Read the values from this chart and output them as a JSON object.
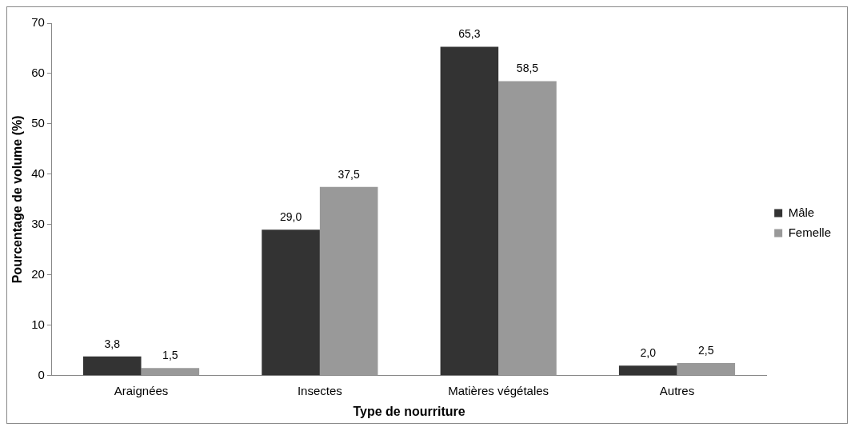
{
  "chart_data": {
    "type": "bar",
    "xlabel": "Type de nourriture",
    "ylabel": "Pourcentage de volume (%)",
    "categories": [
      "Araignées",
      "Insectes",
      "Matières végétales",
      "Autres"
    ],
    "series": [
      {
        "name": "Mâle",
        "color": "#333333",
        "values": [
          3.8,
          29.0,
          65.3,
          2.0
        ],
        "value_labels": [
          "3,8",
          "29,0",
          "65,3",
          "2,0"
        ]
      },
      {
        "name": "Femelle",
        "color": "#999999",
        "values": [
          1.5,
          37.5,
          58.5,
          2.5
        ],
        "value_labels": [
          "1,5",
          "37,5",
          "58,5",
          "2,5"
        ]
      }
    ],
    "ylim": [
      0,
      70
    ],
    "yticks": [
      0,
      10,
      20,
      30,
      40,
      50,
      60,
      70
    ],
    "grid": false,
    "legend": "right"
  }
}
